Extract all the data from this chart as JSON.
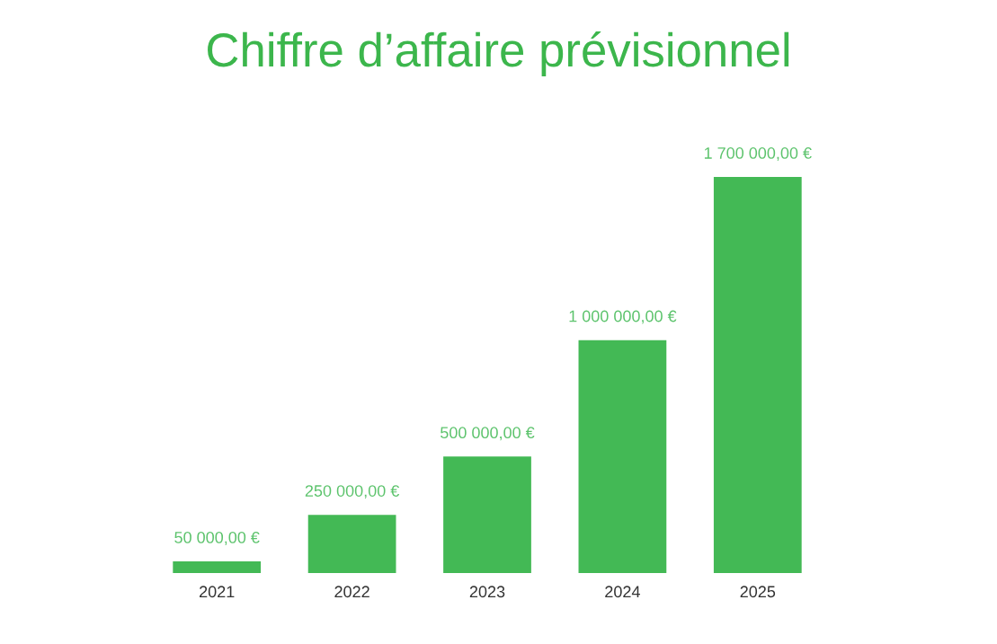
{
  "chart_data": {
    "type": "bar",
    "title": "Chiffre d’affaire prévisionnel",
    "categories": [
      "2021",
      "2022",
      "2023",
      "2024",
      "2025"
    ],
    "values": [
      50000,
      250000,
      500000,
      1000000,
      1700000
    ],
    "value_labels": [
      "50 000,00 €",
      "250 000,00 €",
      "500 000,00 €",
      "1 000 000,00 €",
      "1 700 000,00 €"
    ],
    "color": "#43b955",
    "grid": false,
    "legend": false
  }
}
